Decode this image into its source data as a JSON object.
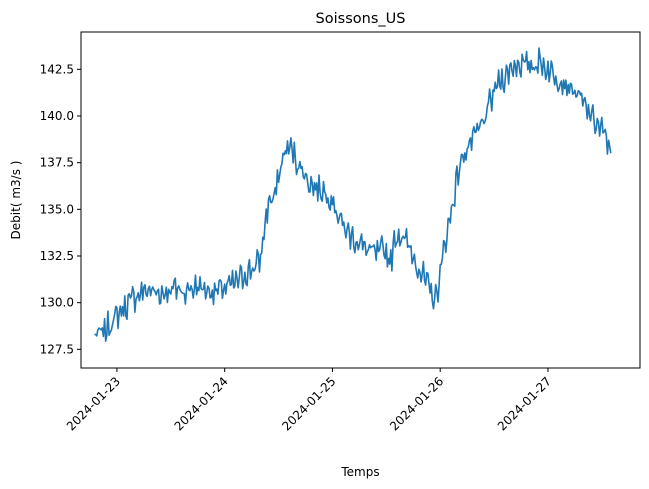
{
  "chart_data": {
    "type": "line",
    "title": "Soissons_US",
    "xlabel": "Temps",
    "ylabel": "Debit( m3/s )",
    "x_range": [
      "2024-01-22T19:00",
      "2024-01-27T17:00"
    ],
    "xlim": [
      "2024-01-22T16:00",
      "2024-01-27T20:30"
    ],
    "ylim": [
      126.5,
      144.5
    ],
    "x_ticks": [
      "2024-01-23",
      "2024-01-24",
      "2024-01-25",
      "2024-01-26",
      "2024-01-27"
    ],
    "y_ticks": [
      "127.5",
      "130.0",
      "132.5",
      "135.0",
      "137.5",
      "140.0",
      "142.5"
    ],
    "grid": false,
    "legend": "none",
    "series": [
      {
        "color": "#1f77b4",
        "samples_per_hour": 4,
        "hourly": [
          128.2,
          128.3,
          128.4,
          128.7,
          129.0,
          129.3,
          129.6,
          129.8,
          130.1,
          130.3,
          130.5,
          130.6,
          130.7,
          130.6,
          130.5,
          130.5,
          130.6,
          130.7,
          130.8,
          130.7,
          130.6,
          130.7,
          130.8,
          130.9,
          130.8,
          130.7,
          130.6,
          130.6,
          130.7,
          130.8,
          130.9,
          131.0,
          131.2,
          131.4,
          131.6,
          131.8,
          132.0,
          132.3,
          134.3,
          135.6,
          135.5,
          136.7,
          137.8,
          138.3,
          138.2,
          137.6,
          137.2,
          136.8,
          136.4,
          136.2,
          136.1,
          136.0,
          135.8,
          135.5,
          134.9,
          134.3,
          133.9,
          133.6,
          133.4,
          133.2,
          133.0,
          132.8,
          132.7,
          132.6,
          132.8,
          132.7,
          132.2,
          133.5,
          133.7,
          133.4,
          133.0,
          132.5,
          132.0,
          131.5,
          131.0,
          130.5,
          130.2,
          131.5,
          133.2,
          134.3,
          135.6,
          137.0,
          137.8,
          138.3,
          138.6,
          139.0,
          139.4,
          139.9,
          140.6,
          141.3,
          141.8,
          142.0,
          142.3,
          142.6,
          142.8,
          142.8,
          142.7,
          142.7,
          142.8,
          142.9,
          142.7,
          142.5,
          142.3,
          142.1,
          141.9,
          141.7,
          141.5,
          141.3,
          141.0,
          140.6,
          140.2,
          139.9,
          139.5,
          139.2,
          138.8,
          138.0
        ]
      }
    ]
  }
}
